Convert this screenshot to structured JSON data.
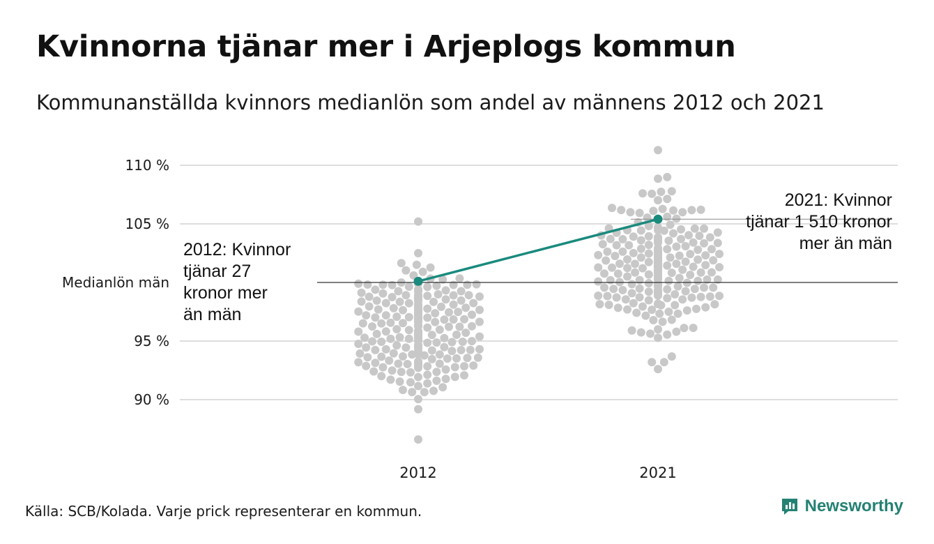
{
  "title": "Kvinnorna tjänar mer i Arjeplogs kommun",
  "subtitle": "Kommunanställda kvinnors medianlön som andel av männens 2012 och 2021",
  "source": "Källa: SCB/Kolada. Varje prick representerar en kommun.",
  "brand": {
    "name": "Newsworthy",
    "icon": "newsworthy-logo-icon",
    "color": "#238173"
  },
  "colors": {
    "dots": "#c8c8c8",
    "highlight": "#1a8a7d",
    "grid": "#dddddd",
    "reference": "#333333"
  },
  "chart_data": {
    "type": "scatter",
    "subtype": "beeswarm",
    "categories": [
      "2012",
      "2021"
    ],
    "ylim": [
      86,
      112
    ],
    "yticks": [
      {
        "value": 90,
        "label": "90 %"
      },
      {
        "value": 95,
        "label": "95 %"
      },
      {
        "value": 100,
        "label": "Medianlön män"
      },
      {
        "value": 105,
        "label": "105 %"
      },
      {
        "value": 110,
        "label": "110 %"
      }
    ],
    "grid": true,
    "reference_line": {
      "value": 100,
      "label": "Medianlön män"
    },
    "swarm_ranges": [
      {
        "category": "2012",
        "min": 86.6,
        "max": 105.2,
        "center": 96.0,
        "spread": 2.6
      },
      {
        "category": "2021",
        "min": 92.6,
        "max": 111.3,
        "center": 101.5,
        "spread": 2.7
      }
    ],
    "highlight": {
      "name": "Arjeplog",
      "points": [
        {
          "x": "2012",
          "y": 100.1
        },
        {
          "x": "2021",
          "y": 105.4
        }
      ]
    },
    "annotations": [
      {
        "category": "2012",
        "lines": [
          "2012: Kvinnor",
          "tjänar 27",
          "kronor mer",
          "än män"
        ]
      },
      {
        "category": "2021",
        "lines": [
          "2021: Kvinnor",
          "tjänar 1 510 kronor",
          "mer än män"
        ]
      }
    ]
  }
}
